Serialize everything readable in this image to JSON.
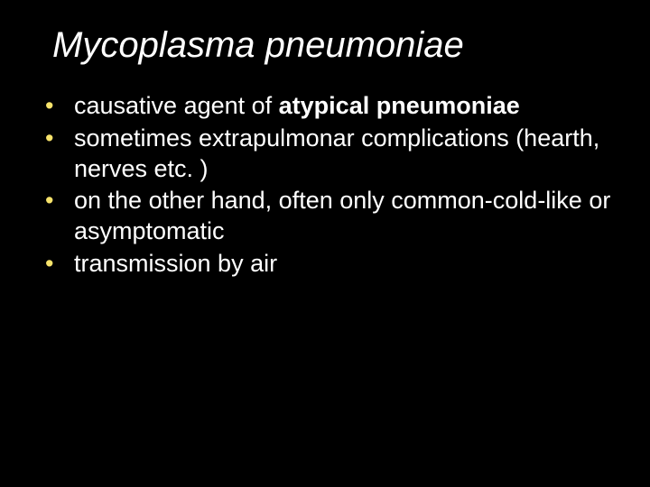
{
  "title": "Mycoplasma pneumoniae",
  "bullets": [
    {
      "pre": "causative agent of ",
      "bold": "atypical pneumoniae",
      "post": ""
    },
    {
      "pre": "sometimes extrapulmonar complications (hearth, nerves etc. )",
      "bold": "",
      "post": ""
    },
    {
      "pre": "on the other hand, often only common-cold-like or asymptomatic",
      "bold": "",
      "post": ""
    },
    {
      "pre": "transmission by air",
      "bold": "",
      "post": ""
    }
  ],
  "colors": {
    "background": "#000000",
    "text": "#ffffff",
    "bullet_marker": "#f7e36b"
  },
  "typography": {
    "title_fontsize": 40,
    "title_style": "italic",
    "body_fontsize": 27,
    "font_family": "Verdana"
  }
}
